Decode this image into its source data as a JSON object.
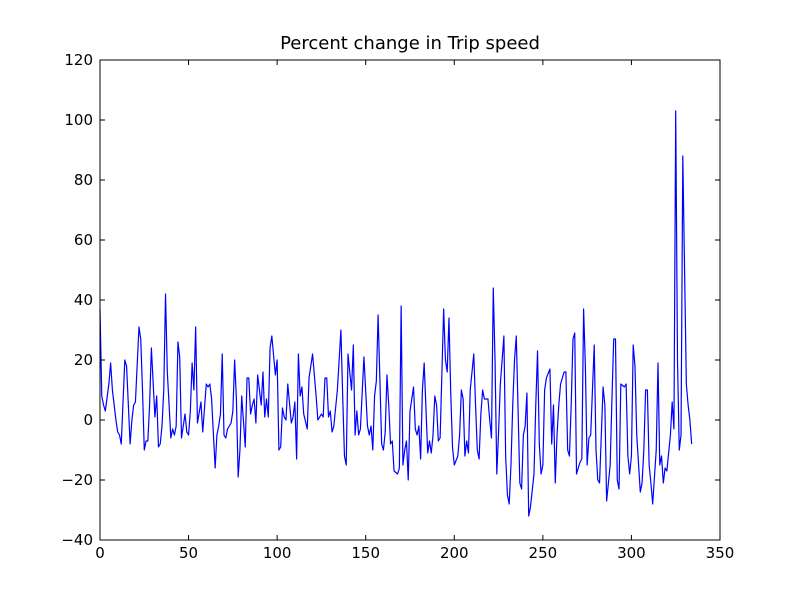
{
  "chart_data": {
    "type": "line",
    "title": "Percent change in Trip speed",
    "color": "#0000ff",
    "x": [
      0,
      1,
      2,
      3,
      5,
      6,
      7,
      8,
      9,
      10,
      11,
      12,
      14,
      15,
      16,
      17,
      18,
      19,
      20,
      22,
      23,
      24,
      25,
      26,
      27,
      28,
      29,
      31,
      32,
      33,
      34,
      35,
      36,
      37,
      38,
      40,
      41,
      42,
      43,
      44,
      45,
      46,
      48,
      49,
      50,
      51,
      52,
      53,
      54,
      55,
      57,
      58,
      59,
      60,
      61,
      62,
      63,
      65,
      66,
      67,
      68,
      69,
      70,
      71,
      72,
      74,
      75,
      76,
      77,
      78,
      79,
      80,
      82,
      83,
      84,
      85,
      86,
      87,
      88,
      89,
      91,
      92,
      93,
      94,
      95,
      96,
      97,
      99,
      100,
      101,
      102,
      103,
      104,
      105,
      106,
      108,
      109,
      110,
      111,
      112,
      113,
      114,
      115,
      117,
      118,
      119,
      120,
      121,
      122,
      123,
      125,
      126,
      127,
      128,
      129,
      130,
      131,
      132,
      134,
      135,
      136,
      137,
      138,
      139,
      140,
      142,
      143,
      144,
      145,
      146,
      147,
      148,
      149,
      151,
      152,
      153,
      154,
      155,
      156,
      157,
      159,
      160,
      161,
      162,
      163,
      164,
      165,
      166,
      168,
      169,
      170,
      171,
      172,
      173,
      174,
      175,
      177,
      178,
      179,
      180,
      181,
      182,
      183,
      185,
      186,
      187,
      188,
      189,
      190,
      191,
      192,
      194,
      195,
      196,
      197,
      198,
      199,
      200,
      202,
      203,
      204,
      205,
      206,
      207,
      208,
      209,
      211,
      212,
      213,
      214,
      215,
      216,
      217,
      219,
      220,
      221,
      222,
      223,
      224,
      225,
      226,
      228,
      229,
      230,
      231,
      232,
      233,
      234,
      235,
      237,
      238,
      239,
      240,
      241,
      242,
      243,
      245,
      246,
      247,
      248,
      249,
      250,
      251,
      252,
      254,
      255,
      256,
      257,
      258,
      259,
      260,
      262,
      263,
      264,
      265,
      266,
      267,
      268,
      269,
      271,
      272,
      273,
      274,
      275,
      276,
      277,
      279,
      280,
      281,
      282,
      283,
      284,
      285,
      286,
      288,
      289,
      290,
      291,
      292,
      293,
      294,
      296,
      297,
      298,
      299,
      300,
      301,
      302,
      303,
      305,
      306,
      307,
      308,
      309,
      310,
      311,
      312,
      314,
      315,
      316,
      317,
      318,
      319,
      320,
      322,
      323,
      324,
      325,
      326,
      327,
      328,
      329,
      331,
      332,
      333,
      334
    ],
    "values": [
      37,
      8,
      5,
      3,
      12,
      19,
      10,
      5,
      0,
      -4,
      -5,
      -8,
      20,
      18,
      5,
      -8,
      0,
      5,
      6,
      31,
      27,
      10,
      -10,
      -7,
      -7,
      5,
      24,
      1,
      8,
      -9,
      -8,
      -2,
      10,
      42,
      16,
      -6,
      -3,
      -5,
      -2,
      26,
      21,
      -6,
      2,
      -4,
      -5,
      3,
      19,
      10,
      31,
      -1,
      6,
      -4,
      4,
      12,
      11,
      12,
      7,
      -16,
      -5,
      -2,
      2,
      22,
      -5,
      -6,
      -3,
      -1,
      3,
      20,
      7,
      -19,
      -10,
      8,
      -9,
      14,
      14,
      2,
      5,
      7,
      -1,
      15,
      5,
      16,
      1,
      7,
      1,
      24,
      28,
      15,
      20,
      -10,
      -9,
      4,
      1,
      0,
      12,
      -1,
      1,
      6,
      -13,
      22,
      8,
      11,
      2,
      -3,
      14,
      18,
      22,
      15,
      8,
      0,
      2,
      1,
      14,
      14,
      1,
      3,
      -4,
      -2,
      10,
      20,
      30,
      8,
      -12,
      -15,
      22,
      10,
      25,
      -5,
      3,
      -5,
      -3,
      9,
      21,
      -2,
      -5,
      -2,
      -10,
      8,
      13,
      35,
      -8,
      -10,
      -4,
      15,
      5,
      -8,
      -7,
      -17,
      -18,
      -16,
      38,
      -15,
      -10,
      -7,
      -20,
      3,
      11,
      -3,
      -5,
      -2,
      -13,
      10,
      19,
      -11,
      -7,
      -11,
      -5,
      8,
      5,
      -7,
      -6,
      37,
      20,
      16,
      34,
      9,
      -9,
      -15,
      -12,
      -5,
      10,
      7,
      -12,
      -7,
      -11,
      10,
      22,
      5,
      -10,
      -13,
      2,
      10,
      7,
      7,
      0,
      -6,
      44,
      20,
      -18,
      -4,
      12,
      28,
      -12,
      -25,
      -28,
      -15,
      5,
      20,
      28,
      -21,
      -23,
      -5,
      -2,
      9,
      -32,
      -29,
      -18,
      5,
      23,
      -8,
      -18,
      -15,
      10,
      14,
      17,
      -8,
      5,
      -21,
      -5,
      5,
      12,
      16,
      16,
      -10,
      -12,
      5,
      27,
      29,
      -18,
      -14,
      -13,
      37,
      18,
      -15,
      -6,
      -5,
      25,
      -10,
      -20,
      -21,
      -5,
      11,
      5,
      -27,
      -15,
      7,
      27,
      27,
      -20,
      -23,
      12,
      11,
      12,
      -12,
      -18,
      -12,
      25,
      18,
      -5,
      -24,
      -21,
      -10,
      10,
      10,
      -15,
      -21,
      -28,
      -10,
      19,
      -15,
      -12,
      -21,
      -16,
      -17,
      -5,
      6,
      -3,
      103,
      20,
      -10,
      -5,
      88,
      12,
      5,
      0,
      -8
    ],
    "xlim": [
      0,
      350
    ],
    "xticks": [
      0,
      50,
      100,
      150,
      200,
      250,
      300,
      350
    ],
    "ylim": [
      -40,
      120
    ],
    "yticks": [
      {
        "value": -40,
        "label": "−40"
      },
      {
        "value": -20,
        "label": "−20"
      },
      0,
      20,
      40,
      60,
      80,
      100,
      120
    ]
  }
}
